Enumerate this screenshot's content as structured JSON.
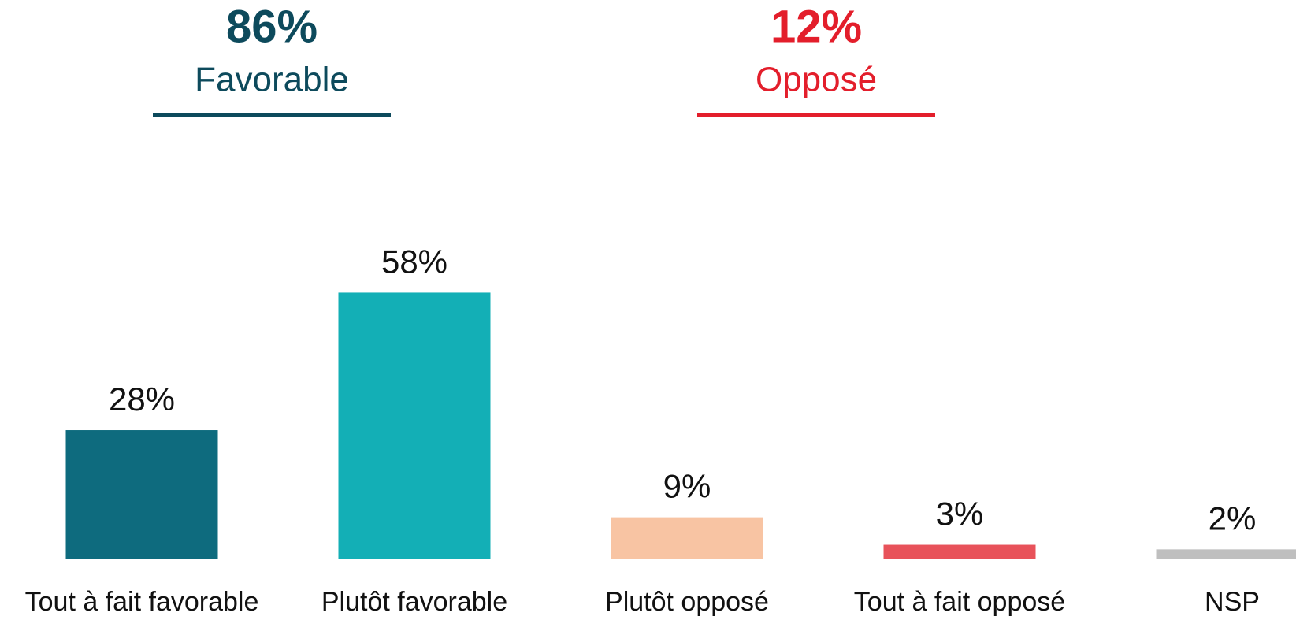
{
  "chart_data": {
    "type": "bar",
    "groups": [
      {
        "value": 86,
        "label": "86%",
        "name": "Favorable",
        "color": "#0d4a5c"
      },
      {
        "value": 12,
        "label": "12%",
        "name": "Opposé",
        "color": "#e31e2b"
      }
    ],
    "categories": [
      "Tout à fait favorable",
      "Plutôt favorable",
      "Plutôt opposé",
      "Tout à fait opposé",
      "NSP"
    ],
    "values": [
      28,
      58,
      9,
      3,
      2
    ],
    "value_labels": [
      "28%",
      "58%",
      "9%",
      "3%",
      "2%"
    ],
    "colors": [
      "#0e6b7e",
      "#13afb6",
      "#f8c4a3",
      "#e8525a",
      "#bfbfbf"
    ],
    "ylim": [
      0,
      100
    ]
  }
}
